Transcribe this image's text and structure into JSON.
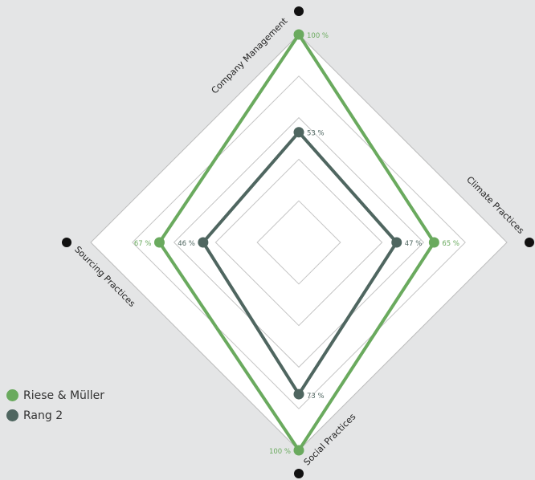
{
  "chart_data": {
    "type": "radar",
    "axes": [
      "Company Management",
      "Climate Practices",
      "Social Practices",
      "Sourcing Practices"
    ],
    "rlim": [
      0,
      100
    ],
    "rings": 5,
    "series": [
      {
        "name": "Riese & Müller",
        "values": [
          100,
          65,
          100,
          67
        ],
        "labels": [
          "100 %",
          "65 %",
          "100 %",
          "67 %"
        ],
        "color": "#6aaa5e"
      },
      {
        "name": "Rang 2",
        "values": [
          53,
          47,
          73,
          46
        ],
        "labels": [
          "53 %",
          "47 %",
          "73 %",
          "46 %"
        ],
        "color": "#4f6660"
      }
    ],
    "legend_position": "bottom-left"
  }
}
